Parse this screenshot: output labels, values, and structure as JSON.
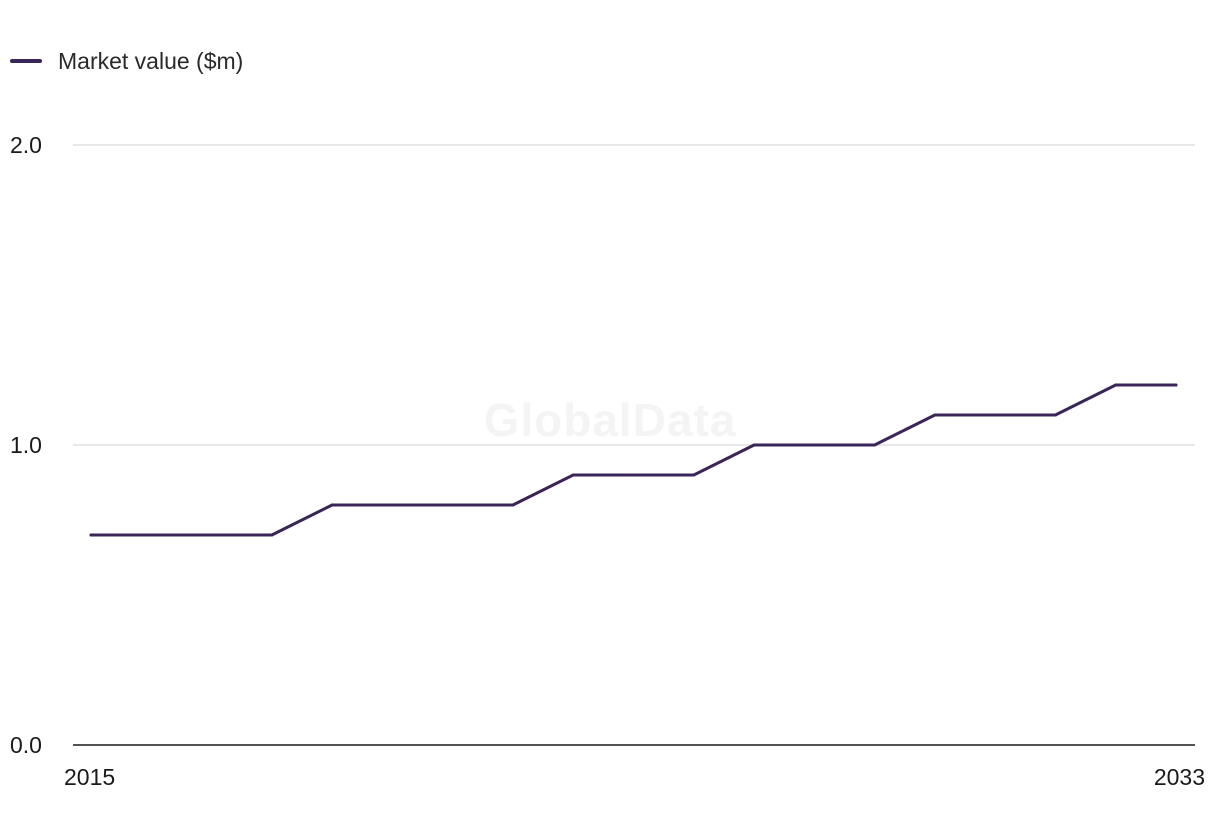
{
  "legend": {
    "label": "Market value ($m)",
    "color": "#3a2558"
  },
  "watermark": "GlobalData",
  "chart_data": {
    "type": "line",
    "title": "",
    "xlabel": "",
    "ylabel": "",
    "xlim": [
      2015,
      2033
    ],
    "ylim": [
      0,
      2
    ],
    "yticks": [
      0,
      1,
      2
    ],
    "ytick_labels": [
      "0.0",
      "1.0",
      "2.0"
    ],
    "xtick_labels": [
      "2015",
      "2033"
    ],
    "grid": true,
    "legend_position": "top-left",
    "series": [
      {
        "name": "Market value ($m)",
        "color": "#3a2558",
        "x": [
          2015,
          2016,
          2017,
          2018,
          2019,
          2020,
          2021,
          2022,
          2023,
          2024,
          2025,
          2026,
          2027,
          2028,
          2029,
          2030,
          2031,
          2032,
          2033
        ],
        "values": [
          0.7,
          0.7,
          0.7,
          0.7,
          0.8,
          0.8,
          0.8,
          0.8,
          0.9,
          0.9,
          0.9,
          1.0,
          1.0,
          1.0,
          1.1,
          1.1,
          1.1,
          1.2,
          1.2
        ]
      }
    ]
  }
}
